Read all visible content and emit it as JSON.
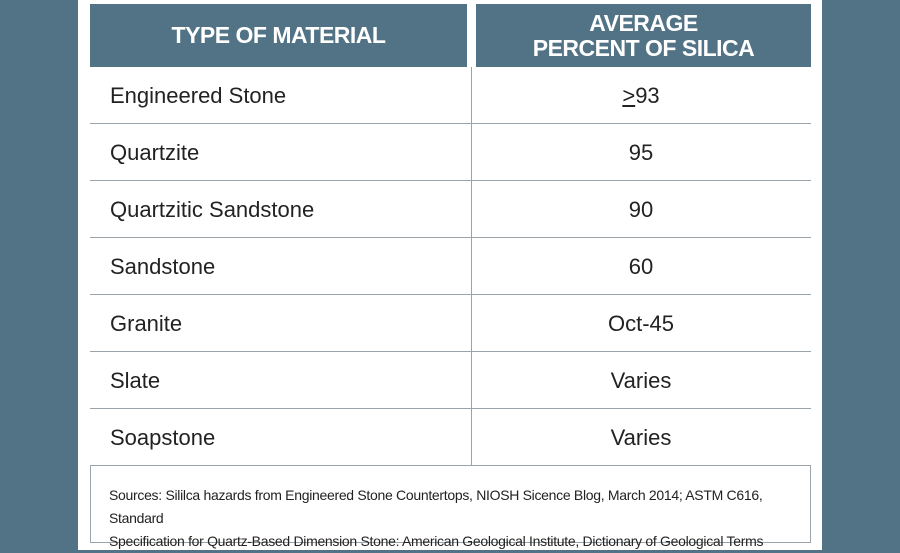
{
  "table": {
    "headers": {
      "material": "TYPE OF MATERIAL",
      "silica_line1": "AVERAGE",
      "silica_line2": "PERCENT OF SILICA"
    },
    "rows": [
      {
        "material": "Engineered Stone",
        "value_symbol": ">",
        "value": "93"
      },
      {
        "material": "Quartzite",
        "value": "95"
      },
      {
        "material": "Quartzitic Sandstone",
        "value": "90"
      },
      {
        "material": "Sandstone",
        "value": "60"
      },
      {
        "material": "Granite",
        "value": "Oct-45"
      },
      {
        "material": "Slate",
        "value": "Varies"
      },
      {
        "material": "Soapstone",
        "value": "Varies"
      }
    ],
    "colors": {
      "header_bg": "#527386",
      "header_text": "#ffffff",
      "page_bg": "#527386",
      "border": "#9aa4aa"
    }
  },
  "sources": {
    "line1": "Sources: Sililca hazards from Engineered Stone Countertops, NIOSH Sicence Blog, March 2014; ASTM C616, Standard",
    "line2": "Specification for Quartz-Based Dimension Stone: American Geological Institute, Dictionary of Geological Terms"
  }
}
